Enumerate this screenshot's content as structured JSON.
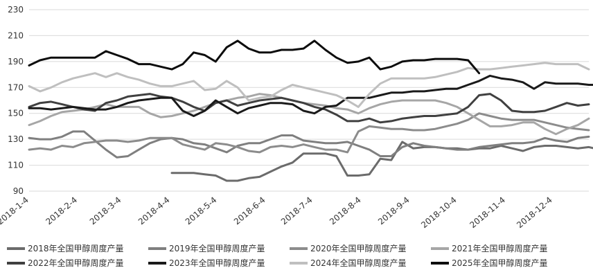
{
  "chart_data": {
    "type": "line",
    "title": "",
    "xlabel": "",
    "ylabel": "",
    "ylim": [
      90,
      230
    ],
    "yticks": [
      90,
      110,
      130,
      150,
      170,
      190,
      210,
      230
    ],
    "grid": "horizontal",
    "legend_position": "bottom",
    "xticks": [
      {
        "label": "2018-1-4",
        "week": 0
      },
      {
        "label": "2018-2-4",
        "week": 4.43
      },
      {
        "label": "2018-3-4",
        "week": 8.43
      },
      {
        "label": "2018-4-4",
        "week": 12.86
      },
      {
        "label": "2018-5-4",
        "week": 17.14
      },
      {
        "label": "2018-6-4",
        "week": 21.57
      },
      {
        "label": "2018-7-4",
        "week": 25.86
      },
      {
        "label": "2018-8-4",
        "week": 30.29
      },
      {
        "label": "2018-9-4",
        "week": 34.71
      },
      {
        "label": "2018-10-4",
        "week": 39.0
      },
      {
        "label": "2018-11-4",
        "week": 43.43
      },
      {
        "label": "2018-12-4",
        "week": 47.71
      }
    ],
    "series": [
      {
        "name": "2018年全国甲醇周度产量",
        "color": "#6b6b6b",
        "width": 3,
        "start_week": 13,
        "values": [
          104,
          104,
          104,
          103,
          102,
          98,
          98,
          100,
          101,
          105,
          109,
          112,
          119,
          119,
          119,
          117,
          102,
          102,
          103,
          115,
          114,
          128,
          123,
          124,
          124,
          123,
          123,
          122,
          123,
          123,
          125,
          123,
          121,
          124,
          125,
          125,
          124,
          123,
          124,
          122,
          122,
          122,
          122
        ]
      },
      {
        "name": "2019年全国甲醇周度产量",
        "color": "#7f7f7f",
        "width": 3,
        "start_week": 0,
        "values": [
          131,
          130,
          130,
          132,
          136,
          136,
          129,
          122,
          116,
          117,
          122,
          127,
          130,
          131,
          130,
          127,
          126,
          123,
          120,
          125,
          127,
          127,
          130,
          133,
          133,
          129,
          128,
          127,
          127,
          128,
          125,
          122,
          117,
          117,
          124,
          127,
          125,
          124,
          123,
          122,
          122,
          124,
          125,
          126,
          127,
          127,
          128,
          131,
          129,
          128,
          131,
          132
        ]
      },
      {
        "name": "2020年全国甲醇周度产量",
        "color": "#8c8c8c",
        "width": 3,
        "start_week": 0,
        "values": [
          122,
          123,
          122,
          125,
          124,
          127,
          128,
          129,
          129,
          128,
          129,
          131,
          131,
          131,
          126,
          124,
          122,
          127,
          126,
          124,
          121,
          120,
          124,
          125,
          124,
          126,
          124,
          122,
          122,
          120,
          136,
          140,
          139,
          138,
          138,
          137,
          137,
          138,
          140,
          142,
          145,
          150,
          148,
          146,
          145,
          145,
          145,
          143,
          141,
          139,
          138,
          137
        ]
      },
      {
        "name": "2021年全国甲醇周度产量",
        "color": "#a6a6a6",
        "width": 3,
        "start_week": 0,
        "values": [
          141,
          144,
          148,
          151,
          152,
          153,
          155,
          157,
          155,
          155,
          155,
          150,
          147,
          148,
          150,
          152,
          155,
          158,
          160,
          162,
          163,
          165,
          164,
          162,
          160,
          158,
          157,
          156,
          154,
          153,
          150,
          154,
          157,
          159,
          160,
          160,
          160,
          160,
          158,
          155,
          150,
          145,
          140,
          140,
          141,
          143,
          143,
          138,
          134,
          138,
          141,
          146
        ]
      },
      {
        "name": "2022年全国甲醇周度产量",
        "color": "#404040",
        "width": 3,
        "start_week": 0,
        "values": [
          155,
          158,
          159,
          157,
          155,
          153,
          152,
          158,
          160,
          163,
          164,
          165,
          163,
          162,
          159,
          155,
          152,
          158,
          160,
          156,
          158,
          160,
          161,
          162,
          160,
          158,
          155,
          153,
          149,
          144,
          144,
          146,
          143,
          144,
          146,
          147,
          148,
          148,
          149,
          150,
          155,
          164,
          165,
          160,
          152,
          151,
          151,
          152,
          155,
          158,
          156,
          157
        ]
      },
      {
        "name": "2023年全国甲醇周度产量",
        "color": "#1a1a1a",
        "width": 3,
        "start_week": 0,
        "values": [
          154,
          154,
          153,
          154,
          155,
          154,
          153,
          153,
          155,
          158,
          160,
          161,
          162,
          162,
          152,
          148,
          152,
          160,
          155,
          150,
          154,
          156,
          158,
          158,
          157,
          152,
          150,
          155,
          156,
          162,
          162,
          162,
          164,
          166,
          166,
          167,
          167,
          168,
          169,
          169,
          172,
          175,
          179,
          177,
          176,
          174,
          169,
          174,
          173,
          173,
          173,
          172,
          172,
          166
        ]
      },
      {
        "name": "2024年全国甲醇周度产量",
        "color": "#bfbfbf",
        "width": 3,
        "start_week": 0,
        "values": [
          171,
          167,
          170,
          174,
          177,
          179,
          181,
          178,
          181,
          178,
          176,
          173,
          171,
          171,
          173,
          175,
          168,
          169,
          175,
          170,
          160,
          162,
          163,
          168,
          172,
          170,
          168,
          166,
          164,
          160,
          155,
          165,
          173,
          177,
          177,
          177,
          177,
          178,
          180,
          182,
          185,
          184,
          184,
          185,
          186,
          187,
          188,
          189,
          188,
          188,
          188,
          184
        ]
      },
      {
        "name": "2025年全国甲醇周度产量",
        "color": "#0d0d0d",
        "width": 3,
        "start_week": 0,
        "values": [
          187,
          191,
          193,
          193,
          193,
          193,
          193,
          198,
          195,
          192,
          188,
          188,
          186,
          184,
          188,
          197,
          195,
          190,
          201,
          206,
          200,
          197,
          197,
          199,
          199,
          200,
          206,
          199,
          193,
          189,
          190,
          193,
          184,
          186,
          190,
          191,
          191,
          192,
          192,
          192,
          191,
          181
        ]
      }
    ]
  }
}
